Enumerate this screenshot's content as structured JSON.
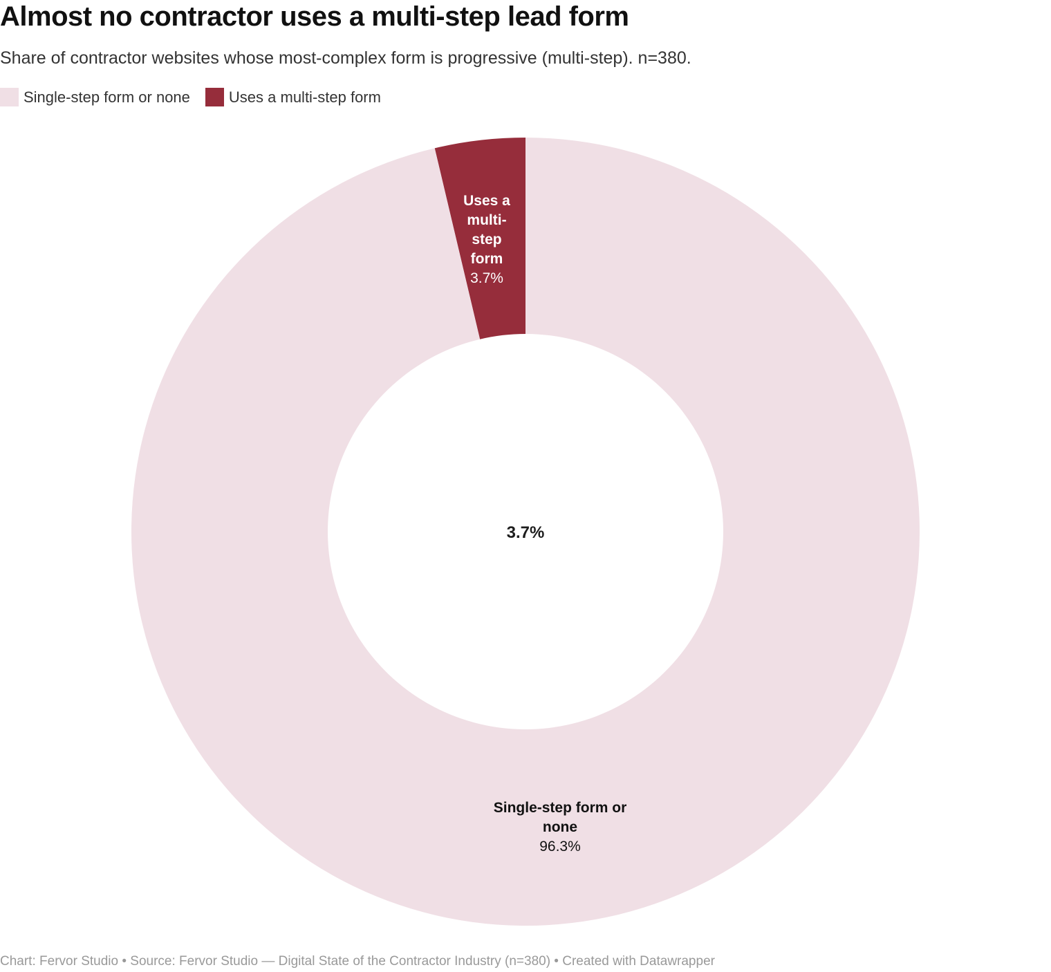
{
  "chart_data": {
    "type": "pie",
    "variant": "donut",
    "title": "Almost no contractor uses a multi-step lead form",
    "subtitle": "Share of contractor websites whose most-complex form is progressive (multi-step). n=380.",
    "legend_position": "top-left",
    "center_label": "3.7%",
    "slices": [
      {
        "name": "Single-step form or none",
        "value": 96.3,
        "value_label": "96.3%",
        "label_lines": [
          "Single-step form or",
          "none"
        ],
        "color": "#f0dfe5",
        "label_color": "#111111"
      },
      {
        "name": "Uses a multi-step form",
        "value": 3.7,
        "value_label": "3.7%",
        "label_lines": [
          "Uses a",
          "multi-",
          "step",
          "form"
        ],
        "color": "#962d3b",
        "label_color": "#ffffff"
      }
    ]
  },
  "footer": "Chart: Fervor Studio • Source: Fervor Studio — Digital State of the Contractor Industry (n=380) • Created with Datawrapper"
}
